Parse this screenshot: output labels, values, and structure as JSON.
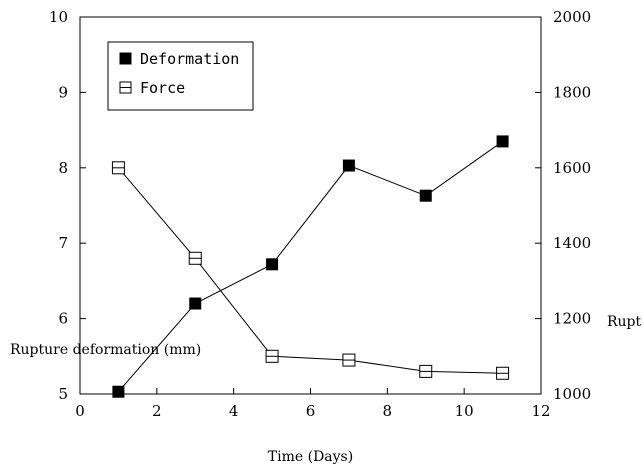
{
  "chart_data": {
    "type": "line",
    "xlabel": "Time (Days)",
    "ylabel_left": "Rupture deformation (mm)",
    "ylabel_right": "Rupt",
    "xlim": [
      0,
      12
    ],
    "ylim_left": [
      5,
      10
    ],
    "ylim_right": [
      1000,
      2000
    ],
    "x_ticks": [
      "0",
      "2",
      "4",
      "6",
      "8",
      "10",
      "12"
    ],
    "y_left_ticks": [
      "5",
      "6",
      "7",
      "8",
      "9",
      "10"
    ],
    "y_right_ticks": [
      "1000",
      "1200",
      "1400",
      "1600",
      "1800",
      "2000"
    ],
    "grid": false,
    "legend_position": "top-left",
    "series": [
      {
        "name": "Deformation",
        "axis": "left",
        "marker": "filled-square",
        "x": [
          1,
          3,
          5,
          7,
          9,
          11
        ],
        "values": [
          5.03,
          6.2,
          6.72,
          8.03,
          7.63,
          8.35
        ]
      },
      {
        "name": "Force",
        "axis": "right",
        "marker": "open-square",
        "x": [
          1,
          3,
          5,
          7,
          9,
          11
        ],
        "values": [
          1600,
          1360,
          1100,
          1090,
          1060,
          1055
        ]
      }
    ]
  }
}
